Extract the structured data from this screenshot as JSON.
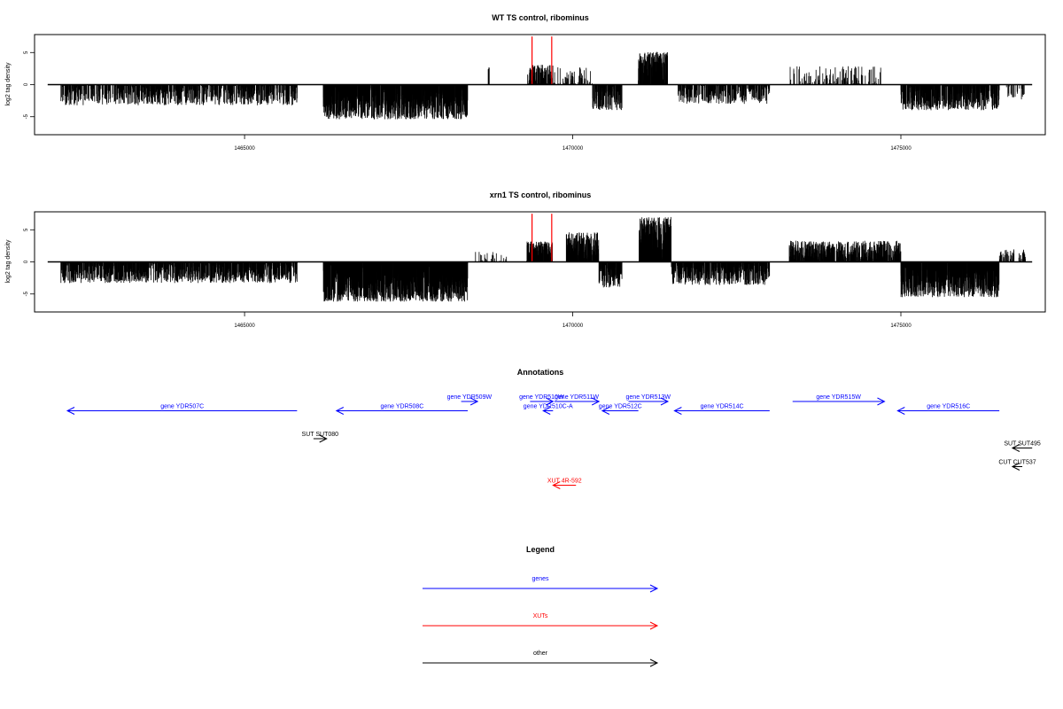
{
  "colors": {
    "gene": "#0000ff",
    "xut": "#ff0000",
    "other": "#000000",
    "signal": "#000000",
    "peak": "#ff0000"
  },
  "chart_data": [
    {
      "type": "bar",
      "title": "WT TS control, ribominus",
      "xlabel": "",
      "ylabel": "log2 tag density",
      "xlim": [
        1461800,
        1477200
      ],
      "ylim": [
        -7.8,
        7.8
      ],
      "x_ticks": [
        1465000,
        1470000,
        1475000
      ],
      "y_ticks": [
        -5,
        0,
        5
      ],
      "x_tick_labels": [
        "1465000",
        "1470000",
        "1475000"
      ],
      "y_tick_labels": [
        "-5",
        "0",
        "5"
      ],
      "baseline_range": [
        1462000,
        1477000
      ],
      "segments": [
        {
          "x0": 1462200,
          "x1": 1465800,
          "mean": -1.5,
          "amp": 1.7,
          "density": 3.5,
          "seed": 11
        },
        {
          "x0": 1466200,
          "x1": 1468400,
          "mean": -2.8,
          "amp": 2.6,
          "density": 7,
          "seed": 22
        },
        {
          "x0": 1468700,
          "x1": 1468750,
          "mean": 2.5,
          "amp": 0.2,
          "density": 1,
          "seed": 33
        },
        {
          "x0": 1469300,
          "x1": 1469700,
          "mean": 1.3,
          "amp": 1.8,
          "density": 4,
          "seed": 44
        },
        {
          "x0": 1469700,
          "x1": 1470300,
          "mean": 1.2,
          "amp": 1.5,
          "density": 1.5,
          "seed": 55
        },
        {
          "x0": 1470300,
          "x1": 1470750,
          "mean": -2.0,
          "amp": 2.0,
          "density": 5,
          "seed": 66
        },
        {
          "x0": 1471000,
          "x1": 1471450,
          "mean": 2.5,
          "amp": 2.6,
          "density": 7,
          "seed": 77
        },
        {
          "x0": 1471600,
          "x1": 1473000,
          "mean": -1.5,
          "amp": 1.5,
          "density": 3.5,
          "seed": 88
        },
        {
          "x0": 1473300,
          "x1": 1474700,
          "mean": 1.3,
          "amp": 1.6,
          "density": 1.2,
          "seed": 99
        },
        {
          "x0": 1475000,
          "x1": 1476500,
          "mean": -2.0,
          "amp": 2.0,
          "density": 5,
          "seed": 111
        },
        {
          "x0": 1476600,
          "x1": 1476900,
          "mean": -1.3,
          "amp": 1.0,
          "density": 1,
          "seed": 122
        }
      ],
      "peaks": [
        {
          "x": 1469380,
          "y": 7.5
        },
        {
          "x": 1469680,
          "y": 7.5
        }
      ]
    },
    {
      "type": "bar",
      "title": "xrn1 TS control, ribominus",
      "xlabel": "",
      "ylabel": "log2 tag density",
      "xlim": [
        1461800,
        1477200
      ],
      "ylim": [
        -7.8,
        7.8
      ],
      "x_ticks": [
        1465000,
        1470000,
        1475000
      ],
      "y_ticks": [
        -5,
        0,
        5
      ],
      "x_tick_labels": [
        "1465000",
        "1470000",
        "1475000"
      ],
      "y_tick_labels": [
        "-5",
        "0",
        "5"
      ],
      "baseline_range": [
        1462000,
        1477000
      ],
      "segments": [
        {
          "x0": 1462200,
          "x1": 1465800,
          "mean": -1.5,
          "amp": 1.8,
          "density": 5,
          "seed": 211
        },
        {
          "x0": 1466200,
          "x1": 1468400,
          "mean": -3.2,
          "amp": 3.0,
          "density": 9,
          "seed": 222
        },
        {
          "x0": 1468500,
          "x1": 1469000,
          "mean": 0.8,
          "amp": 0.8,
          "density": 0.6,
          "seed": 233
        },
        {
          "x0": 1469300,
          "x1": 1469700,
          "mean": 1.6,
          "amp": 1.6,
          "density": 6,
          "seed": 244
        },
        {
          "x0": 1469900,
          "x1": 1470400,
          "mean": 2.3,
          "amp": 2.3,
          "density": 7,
          "seed": 255
        },
        {
          "x0": 1470400,
          "x1": 1470750,
          "mean": -2.0,
          "amp": 2.0,
          "density": 5,
          "seed": 266
        },
        {
          "x0": 1471000,
          "x1": 1471500,
          "mean": 3.5,
          "amp": 3.5,
          "density": 10,
          "seed": 277
        },
        {
          "x0": 1471500,
          "x1": 1473000,
          "mean": -1.8,
          "amp": 1.8,
          "density": 5,
          "seed": 288
        },
        {
          "x0": 1473300,
          "x1": 1475000,
          "mean": 1.6,
          "amp": 1.7,
          "density": 5,
          "seed": 299
        },
        {
          "x0": 1475000,
          "x1": 1476500,
          "mean": -3.0,
          "amp": 2.5,
          "density": 8,
          "seed": 311
        },
        {
          "x0": 1476500,
          "x1": 1476900,
          "mean": 1.0,
          "amp": 1.0,
          "density": 2,
          "seed": 322
        }
      ],
      "peaks": [
        {
          "x": 1469380,
          "y": 7.5
        },
        {
          "x": 1469680,
          "y": 7.5
        }
      ]
    }
  ],
  "annotations": {
    "title": "Annotations",
    "items": [
      {
        "label": "gene YDR507C",
        "start": 1462300,
        "end": 1465800,
        "strand": "-",
        "kind": "gene",
        "row": 1
      },
      {
        "label": "gene YDR508C",
        "start": 1466400,
        "end": 1468400,
        "strand": "-",
        "kind": "gene",
        "row": 1
      },
      {
        "label": "gene YDR509W",
        "start": 1468300,
        "end": 1468550,
        "strand": "+",
        "kind": "gene",
        "row": 0
      },
      {
        "label": "gene YDR510W",
        "start": 1469350,
        "end": 1469700,
        "strand": "+",
        "kind": "gene",
        "row": 0
      },
      {
        "label": "gene YDR510C-A",
        "start": 1469550,
        "end": 1469700,
        "strand": "-",
        "kind": "gene",
        "row": 1
      },
      {
        "label": "gene YDR511W",
        "start": 1469720,
        "end": 1470400,
        "strand": "+",
        "kind": "gene",
        "row": 0
      },
      {
        "label": "gene YDR512C",
        "start": 1470450,
        "end": 1471000,
        "strand": "-",
        "kind": "gene",
        "row": 1
      },
      {
        "label": "gene YDR513W",
        "start": 1470850,
        "end": 1471450,
        "strand": "+",
        "kind": "gene",
        "row": 0
      },
      {
        "label": "gene YDR514C",
        "start": 1471550,
        "end": 1473000,
        "strand": "-",
        "kind": "gene",
        "row": 1
      },
      {
        "label": "gene YDR515W",
        "start": 1473350,
        "end": 1474750,
        "strand": "+",
        "kind": "gene",
        "row": 0
      },
      {
        "label": "gene YDR516C",
        "start": 1474950,
        "end": 1476500,
        "strand": "-",
        "kind": "gene",
        "row": 1
      },
      {
        "label": "SUT SUT080",
        "start": 1466050,
        "end": 1466250,
        "strand": "+",
        "kind": "other",
        "row": 4
      },
      {
        "label": "SUT SUT495",
        "start": 1476700,
        "end": 1477000,
        "strand": "-",
        "kind": "other",
        "row": 5
      },
      {
        "label": "CUT CUT537",
        "start": 1476700,
        "end": 1476850,
        "strand": "-",
        "kind": "other",
        "row": 7
      },
      {
        "label": "XUT 4R-592",
        "start": 1469700,
        "end": 1470050,
        "strand": "-",
        "kind": "xut",
        "row": 9
      }
    ]
  },
  "legend": {
    "title": "Legend",
    "items": [
      {
        "label": "genes",
        "kind": "gene"
      },
      {
        "label": "XUTs",
        "kind": "xut"
      },
      {
        "label": "other",
        "kind": "other"
      }
    ]
  }
}
